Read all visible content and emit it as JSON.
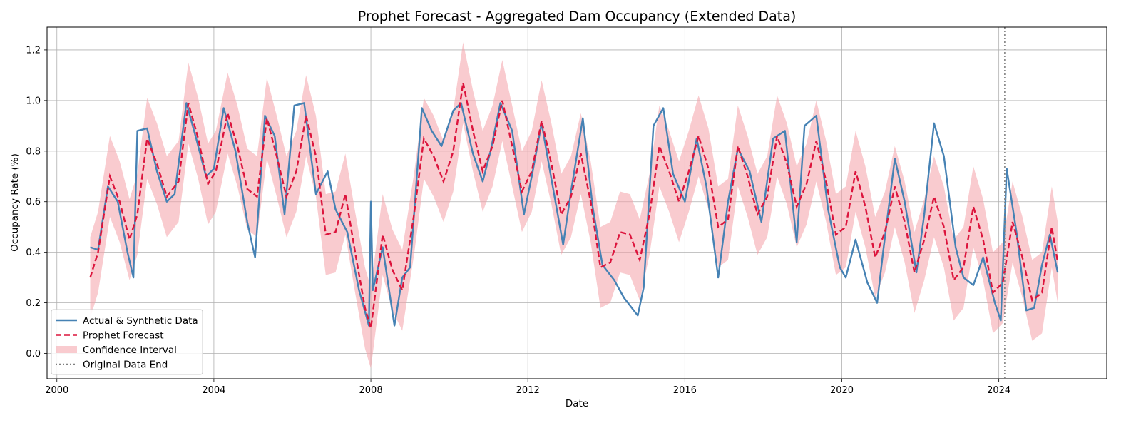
{
  "chart_data": {
    "type": "line",
    "title": "Prophet Forecast - Aggregated Dam Occupancy (Extended Data)",
    "xlabel": "Date",
    "ylabel": "Occupancy Rate (%)",
    "xlim": [
      1999.75,
      2026.75
    ],
    "ylim": [
      -0.1,
      1.29
    ],
    "x_ticks": [
      2000,
      2004,
      2008,
      2012,
      2016,
      2020,
      2024
    ],
    "y_ticks": [
      0.0,
      0.2,
      0.4,
      0.6,
      0.8,
      1.0,
      1.2
    ],
    "y_tick_labels": [
      "0.0",
      "0.2",
      "0.4",
      "0.6",
      "0.8",
      "1.0",
      "1.2"
    ],
    "grid": true,
    "legend_position": "lower-left",
    "original_data_end": 2024.15,
    "colors": {
      "actual": "#4682b4",
      "forecast": "#dc143c",
      "interval": "#f4a0a8",
      "data_end": "#808080"
    },
    "series": [
      {
        "name": "Actual & Synthetic Data",
        "style": "solid",
        "x": [
          2000.85,
          2001.05,
          2001.3,
          2001.55,
          2001.8,
          2001.95,
          2002.05,
          2002.3,
          2002.55,
          2002.8,
          2003.0,
          2003.3,
          2003.55,
          2003.8,
          2004.0,
          2004.25,
          2004.55,
          2004.85,
          2005.05,
          2005.3,
          2005.55,
          2005.8,
          2006.05,
          2006.3,
          2006.6,
          2006.9,
          2007.1,
          2007.4,
          2007.7,
          2007.95,
          2008.0,
          2008.05,
          2008.3,
          2008.6,
          2008.8,
          2009.0,
          2009.3,
          2009.55,
          2009.8,
          2010.1,
          2010.3,
          2010.6,
          2010.85,
          2011.05,
          2011.3,
          2011.6,
          2011.9,
          2012.1,
          2012.35,
          2012.6,
          2012.9,
          2013.1,
          2013.4,
          2013.65,
          2013.9,
          2014.2,
          2014.45,
          2014.8,
          2014.95,
          2015.2,
          2015.45,
          2015.7,
          2016.0,
          2016.3,
          2016.55,
          2016.85,
          2017.1,
          2017.35,
          2017.65,
          2017.95,
          2018.25,
          2018.55,
          2018.85,
          2019.05,
          2019.35,
          2019.65,
          2019.95,
          2020.1,
          2020.35,
          2020.65,
          2020.9,
          2021.05,
          2021.35,
          2021.6,
          2021.9,
          2022.1,
          2022.35,
          2022.6,
          2022.9,
          2023.1,
          2023.35,
          2023.6,
          2023.9,
          2024.05,
          2024.2,
          2024.45,
          2024.7,
          2024.9,
          2025.1,
          2025.3,
          2025.5
        ],
        "y": [
          0.42,
          0.41,
          0.66,
          0.6,
          0.4,
          0.3,
          0.88,
          0.89,
          0.72,
          0.6,
          0.63,
          0.99,
          0.85,
          0.7,
          0.73,
          0.97,
          0.8,
          0.52,
          0.38,
          0.94,
          0.86,
          0.55,
          0.98,
          0.99,
          0.63,
          0.72,
          0.57,
          0.48,
          0.25,
          0.11,
          0.6,
          0.25,
          0.42,
          0.11,
          0.3,
          0.34,
          0.97,
          0.88,
          0.82,
          0.96,
          0.99,
          0.79,
          0.68,
          0.8,
          0.99,
          0.88,
          0.55,
          0.7,
          0.91,
          0.69,
          0.43,
          0.64,
          0.93,
          0.58,
          0.35,
          0.29,
          0.22,
          0.15,
          0.26,
          0.9,
          0.97,
          0.71,
          0.6,
          0.85,
          0.66,
          0.3,
          0.6,
          0.81,
          0.72,
          0.52,
          0.85,
          0.88,
          0.44,
          0.9,
          0.94,
          0.57,
          0.34,
          0.3,
          0.45,
          0.28,
          0.2,
          0.4,
          0.77,
          0.6,
          0.32,
          0.55,
          0.91,
          0.78,
          0.42,
          0.3,
          0.27,
          0.38,
          0.2,
          0.13,
          0.73,
          0.48,
          0.17,
          0.18,
          0.35,
          0.47,
          0.32
        ]
      },
      {
        "name": "Prophet Forecast",
        "style": "dashed",
        "x": [
          2000.85,
          2001.05,
          2001.35,
          2001.6,
          2001.85,
          2002.05,
          2002.3,
          2002.55,
          2002.8,
          2003.1,
          2003.35,
          2003.6,
          2003.85,
          2004.05,
          2004.35,
          2004.6,
          2004.85,
          2005.1,
          2005.35,
          2005.6,
          2005.85,
          2006.1,
          2006.35,
          2006.6,
          2006.85,
          2007.1,
          2007.35,
          2007.6,
          2007.85,
          2008.0,
          2008.3,
          2008.55,
          2008.8,
          2009.1,
          2009.35,
          2009.6,
          2009.85,
          2010.1,
          2010.35,
          2010.6,
          2010.85,
          2011.1,
          2011.35,
          2011.6,
          2011.85,
          2012.1,
          2012.35,
          2012.6,
          2012.85,
          2013.1,
          2013.35,
          2013.6,
          2013.85,
          2014.1,
          2014.35,
          2014.6,
          2014.85,
          2015.1,
          2015.35,
          2015.6,
          2015.85,
          2016.1,
          2016.35,
          2016.6,
          2016.85,
          2017.1,
          2017.35,
          2017.6,
          2017.85,
          2018.1,
          2018.35,
          2018.6,
          2018.85,
          2019.1,
          2019.35,
          2019.6,
          2019.85,
          2020.1,
          2020.35,
          2020.6,
          2020.85,
          2021.1,
          2021.35,
          2021.6,
          2021.85,
          2022.1,
          2022.35,
          2022.6,
          2022.85,
          2023.1,
          2023.35,
          2023.6,
          2023.85,
          2024.1,
          2024.35,
          2024.6,
          2024.85,
          2025.1,
          2025.35,
          2025.5
        ],
        "y": [
          0.3,
          0.4,
          0.7,
          0.6,
          0.45,
          0.55,
          0.85,
          0.75,
          0.62,
          0.68,
          0.99,
          0.85,
          0.67,
          0.72,
          0.95,
          0.82,
          0.65,
          0.62,
          0.93,
          0.78,
          0.62,
          0.72,
          0.94,
          0.78,
          0.47,
          0.48,
          0.63,
          0.4,
          0.18,
          0.1,
          0.47,
          0.33,
          0.25,
          0.55,
          0.85,
          0.78,
          0.68,
          0.8,
          1.07,
          0.88,
          0.72,
          0.82,
          1.0,
          0.82,
          0.64,
          0.72,
          0.92,
          0.75,
          0.55,
          0.62,
          0.79,
          0.6,
          0.34,
          0.36,
          0.48,
          0.47,
          0.37,
          0.55,
          0.82,
          0.72,
          0.6,
          0.72,
          0.86,
          0.73,
          0.5,
          0.53,
          0.82,
          0.7,
          0.55,
          0.62,
          0.86,
          0.75,
          0.58,
          0.67,
          0.84,
          0.68,
          0.47,
          0.5,
          0.72,
          0.58,
          0.38,
          0.48,
          0.66,
          0.52,
          0.32,
          0.45,
          0.62,
          0.5,
          0.29,
          0.34,
          0.58,
          0.45,
          0.24,
          0.28,
          0.52,
          0.38,
          0.21,
          0.24,
          0.5,
          0.36
        ]
      }
    ],
    "interval": {
      "name": "Confidence Interval",
      "width": 0.32
    },
    "legend": [
      {
        "label": "Actual & Synthetic Data",
        "kind": "solid-line"
      },
      {
        "label": "Prophet Forecast",
        "kind": "dashed-line"
      },
      {
        "label": "Confidence Interval",
        "kind": "patch"
      },
      {
        "label": "Original Data End",
        "kind": "dotted-line"
      }
    ]
  }
}
